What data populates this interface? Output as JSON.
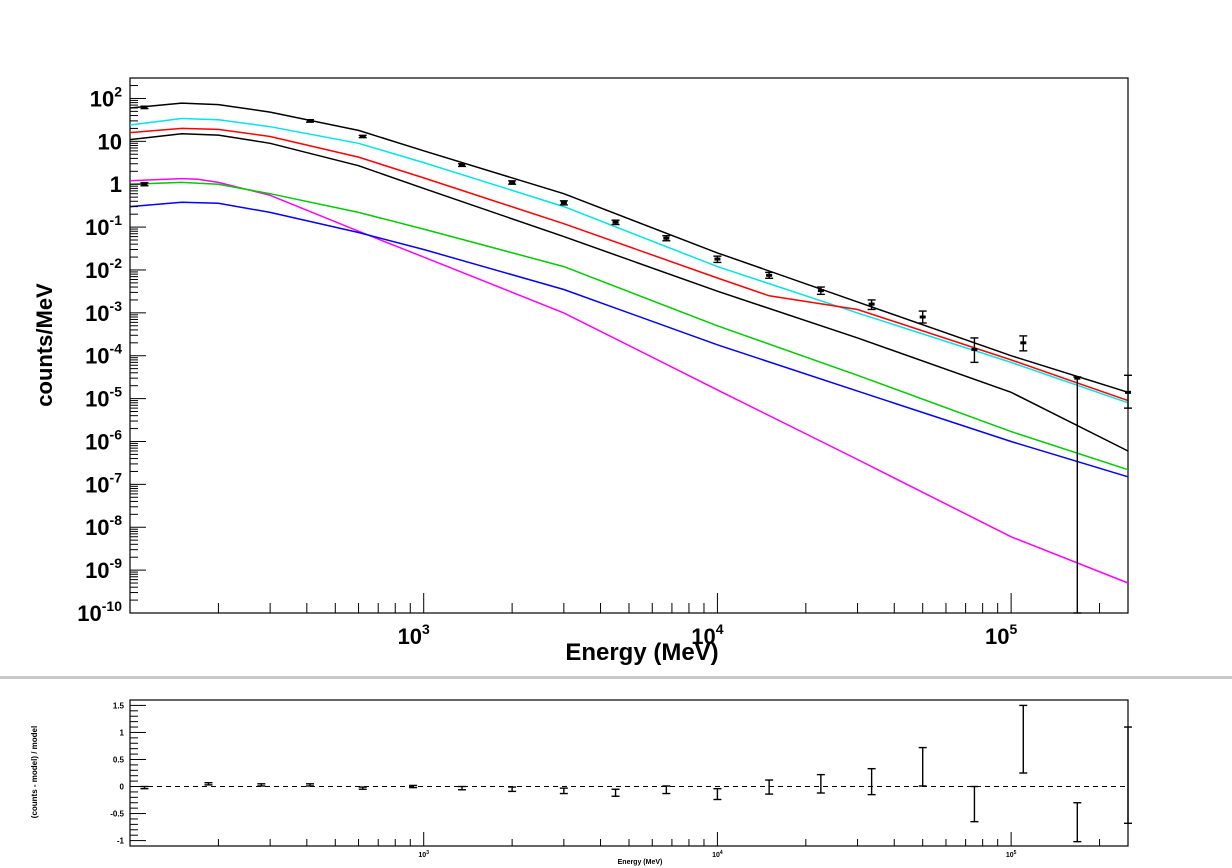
{
  "chart_data": [
    {
      "type": "line",
      "title": "",
      "xlabel": "Energy (MeV)",
      "ylabel": "counts/MeV",
      "x_scale": "log",
      "y_scale": "log",
      "xlim": [
        100,
        250000
      ],
      "ylim": [
        1e-10,
        300
      ],
      "grid": false,
      "legend": "none",
      "x_ticks": [
        {
          "value": 1000,
          "base": "10",
          "exp": "3"
        },
        {
          "value": 10000,
          "base": "10",
          "exp": "4"
        },
        {
          "value": 100000,
          "base": "10",
          "exp": "5"
        }
      ],
      "y_ticks": [
        {
          "value": 100,
          "base": "10",
          "exp": "2"
        },
        {
          "value": 10,
          "base": "10",
          "exp": ""
        },
        {
          "value": 1,
          "base": "1",
          "exp": ""
        },
        {
          "value": 0.1,
          "base": "10",
          "exp": "-1"
        },
        {
          "value": 0.01,
          "base": "10",
          "exp": "-2"
        },
        {
          "value": 0.001,
          "base": "10",
          "exp": "-3"
        },
        {
          "value": 0.0001,
          "base": "10",
          "exp": "-4"
        },
        {
          "value": 1e-05,
          "base": "10",
          "exp": "-5"
        },
        {
          "value": 1e-06,
          "base": "10",
          "exp": "-6"
        },
        {
          "value": 1e-07,
          "base": "10",
          "exp": "-7"
        },
        {
          "value": 1e-08,
          "base": "10",
          "exp": "-8"
        },
        {
          "value": 1e-09,
          "base": "10",
          "exp": "-9"
        },
        {
          "value": 1e-10,
          "base": "10",
          "exp": "-10"
        }
      ],
      "series": [
        {
          "color": "#000000",
          "x": [
            100,
            150,
            200,
            300,
            600,
            1000,
            3000,
            10000,
            30000,
            100000,
            250000
          ],
          "y": [
            60,
            78,
            72,
            48,
            18,
            6,
            0.6,
            0.025,
            0.0018,
            0.0001,
            1.4e-05
          ]
        },
        {
          "color": "#00e5e5",
          "x": [
            100,
            150,
            200,
            300,
            600,
            1000,
            3000,
            10000,
            30000,
            100000,
            250000
          ],
          "y": [
            24,
            34,
            32,
            22,
            9,
            3.2,
            0.3,
            0.012,
            0.001,
            7e-05,
            8e-06
          ]
        },
        {
          "color": "#ff0000",
          "x": [
            100,
            150,
            200,
            300,
            600,
            1000,
            3000,
            10000,
            15000,
            30000,
            100000,
            250000
          ],
          "y": [
            16,
            20,
            19,
            13,
            4.3,
            1.4,
            0.12,
            0.0065,
            0.0025,
            0.0012,
            8e-05,
            9e-06
          ]
        },
        {
          "color": "#000000",
          "x": [
            100,
            150,
            200,
            300,
            600,
            1000,
            3000,
            10000,
            30000,
            100000,
            250000
          ],
          "y": [
            11,
            15,
            14,
            9,
            2.7,
            0.8,
            0.06,
            0.0032,
            0.00026,
            1.4e-05,
            6e-07
          ]
        },
        {
          "color": "#ff00ff",
          "x": [
            100,
            150,
            170,
            200,
            300,
            600,
            1000,
            3000,
            10000,
            30000,
            100000,
            250000
          ],
          "y": [
            1.2,
            1.35,
            1.3,
            1.1,
            0.55,
            0.08,
            0.02,
            0.001,
            1.6e-05,
            3.8e-07,
            6e-09,
            5e-10
          ]
        },
        {
          "color": "#00cc00",
          "x": [
            100,
            150,
            200,
            300,
            600,
            1000,
            3000,
            10000,
            30000,
            100000,
            250000
          ],
          "y": [
            1.0,
            1.1,
            1.0,
            0.6,
            0.22,
            0.09,
            0.012,
            0.0005,
            3.5e-05,
            1.7e-06,
            2.2e-07
          ]
        },
        {
          "color": "#0000ff",
          "x": [
            100,
            150,
            200,
            300,
            600,
            1000,
            3000,
            10000,
            30000,
            100000,
            250000
          ],
          "y": [
            0.3,
            0.38,
            0.36,
            0.22,
            0.075,
            0.03,
            0.0035,
            0.00018,
            1.5e-05,
            1e-06,
            1.5e-07
          ]
        }
      ],
      "points": [
        {
          "x": 112,
          "y": 62,
          "lo": 58,
          "hi": 66
        },
        {
          "x": 112,
          "y": 1.0,
          "lo": 0.92,
          "hi": 1.08
        },
        {
          "x": 410,
          "y": 30,
          "lo": 28,
          "hi": 32
        },
        {
          "x": 620,
          "y": 13,
          "lo": 12.2,
          "hi": 13.8
        },
        {
          "x": 1350,
          "y": 2.8,
          "lo": 2.6,
          "hi": 3.0
        },
        {
          "x": 2000,
          "y": 1.1,
          "lo": 1.0,
          "hi": 1.2
        },
        {
          "x": 3000,
          "y": 0.37,
          "lo": 0.33,
          "hi": 0.41
        },
        {
          "x": 4500,
          "y": 0.13,
          "lo": 0.115,
          "hi": 0.145
        },
        {
          "x": 6700,
          "y": 0.055,
          "lo": 0.048,
          "hi": 0.063
        },
        {
          "x": 10000,
          "y": 0.018,
          "lo": 0.015,
          "hi": 0.021
        },
        {
          "x": 15000,
          "y": 0.0075,
          "lo": 0.0064,
          "hi": 0.0088
        },
        {
          "x": 22500,
          "y": 0.0033,
          "lo": 0.0027,
          "hi": 0.004
        },
        {
          "x": 33500,
          "y": 0.0016,
          "lo": 0.0012,
          "hi": 0.002
        },
        {
          "x": 50000,
          "y": 0.0008,
          "lo": 0.00058,
          "hi": 0.0011
        },
        {
          "x": 75000,
          "y": 0.00014,
          "lo": 7e-05,
          "hi": 0.00026
        },
        {
          "x": 110000,
          "y": 0.0002,
          "lo": 0.00013,
          "hi": 0.00029
        },
        {
          "x": 168000,
          "y": 3e-05,
          "lo": 1e-10,
          "hi": 3.2e-05
        },
        {
          "x": 250000,
          "y": 1.4e-05,
          "lo": 6e-06,
          "hi": 3.5e-05
        }
      ]
    },
    {
      "type": "scatter",
      "title": "",
      "xlabel": "Energy (MeV)",
      "ylabel": "(counts - model) / model",
      "x_scale": "log",
      "y_scale": "linear",
      "xlim": [
        100,
        250000
      ],
      "ylim": [
        -1.1,
        1.6
      ],
      "grid": false,
      "legend": "none",
      "reference_line": {
        "y": 0,
        "style": "dashed"
      },
      "x_ticks": [
        {
          "value": 1000,
          "base": "10",
          "exp": "3"
        },
        {
          "value": 10000,
          "base": "10",
          "exp": "4"
        },
        {
          "value": 100000,
          "base": "10",
          "exp": "5"
        }
      ],
      "y_ticks": [
        {
          "value": 1.5,
          "label": "1.5"
        },
        {
          "value": 1,
          "label": "1"
        },
        {
          "value": 0.5,
          "label": "0.5"
        },
        {
          "value": 0,
          "label": "0"
        },
        {
          "value": -0.5,
          "label": "-0.5"
        },
        {
          "value": -1,
          "label": "-1"
        }
      ],
      "points": [
        {
          "x": 112,
          "y": -0.02,
          "lo": -0.04,
          "hi": 0.0
        },
        {
          "x": 185,
          "y": 0.05,
          "lo": 0.03,
          "hi": 0.07
        },
        {
          "x": 280,
          "y": 0.03,
          "lo": 0.01,
          "hi": 0.05
        },
        {
          "x": 410,
          "y": 0.03,
          "lo": 0.01,
          "hi": 0.05
        },
        {
          "x": 620,
          "y": -0.03,
          "lo": -0.05,
          "hi": -0.01
        },
        {
          "x": 920,
          "y": 0.0,
          "lo": -0.02,
          "hi": 0.02
        },
        {
          "x": 1350,
          "y": -0.03,
          "lo": -0.06,
          "hi": 0.0
        },
        {
          "x": 2000,
          "y": -0.05,
          "lo": -0.09,
          "hi": -0.01
        },
        {
          "x": 3000,
          "y": -0.08,
          "lo": -0.13,
          "hi": -0.03
        },
        {
          "x": 4500,
          "y": -0.12,
          "lo": -0.18,
          "hi": -0.05
        },
        {
          "x": 6700,
          "y": -0.06,
          "lo": -0.13,
          "hi": 0.01
        },
        {
          "x": 10000,
          "y": -0.14,
          "lo": -0.24,
          "hi": -0.04
        },
        {
          "x": 15000,
          "y": 0.0,
          "lo": -0.14,
          "hi": 0.12
        },
        {
          "x": 22500,
          "y": 0.05,
          "lo": -0.12,
          "hi": 0.22
        },
        {
          "x": 33500,
          "y": 0.1,
          "lo": -0.15,
          "hi": 0.33
        },
        {
          "x": 50000,
          "y": 0.36,
          "lo": 0.01,
          "hi": 0.72
        },
        {
          "x": 75000,
          "y": -0.3,
          "lo": -0.65,
          "hi": 0.0
        },
        {
          "x": 110000,
          "y": 0.87,
          "lo": 0.25,
          "hi": 1.5
        },
        {
          "x": 168000,
          "y": -0.66,
          "lo": -1.02,
          "hi": -0.3
        },
        {
          "x": 250000,
          "y": 0.2,
          "lo": -0.68,
          "hi": 1.1
        }
      ]
    }
  ]
}
